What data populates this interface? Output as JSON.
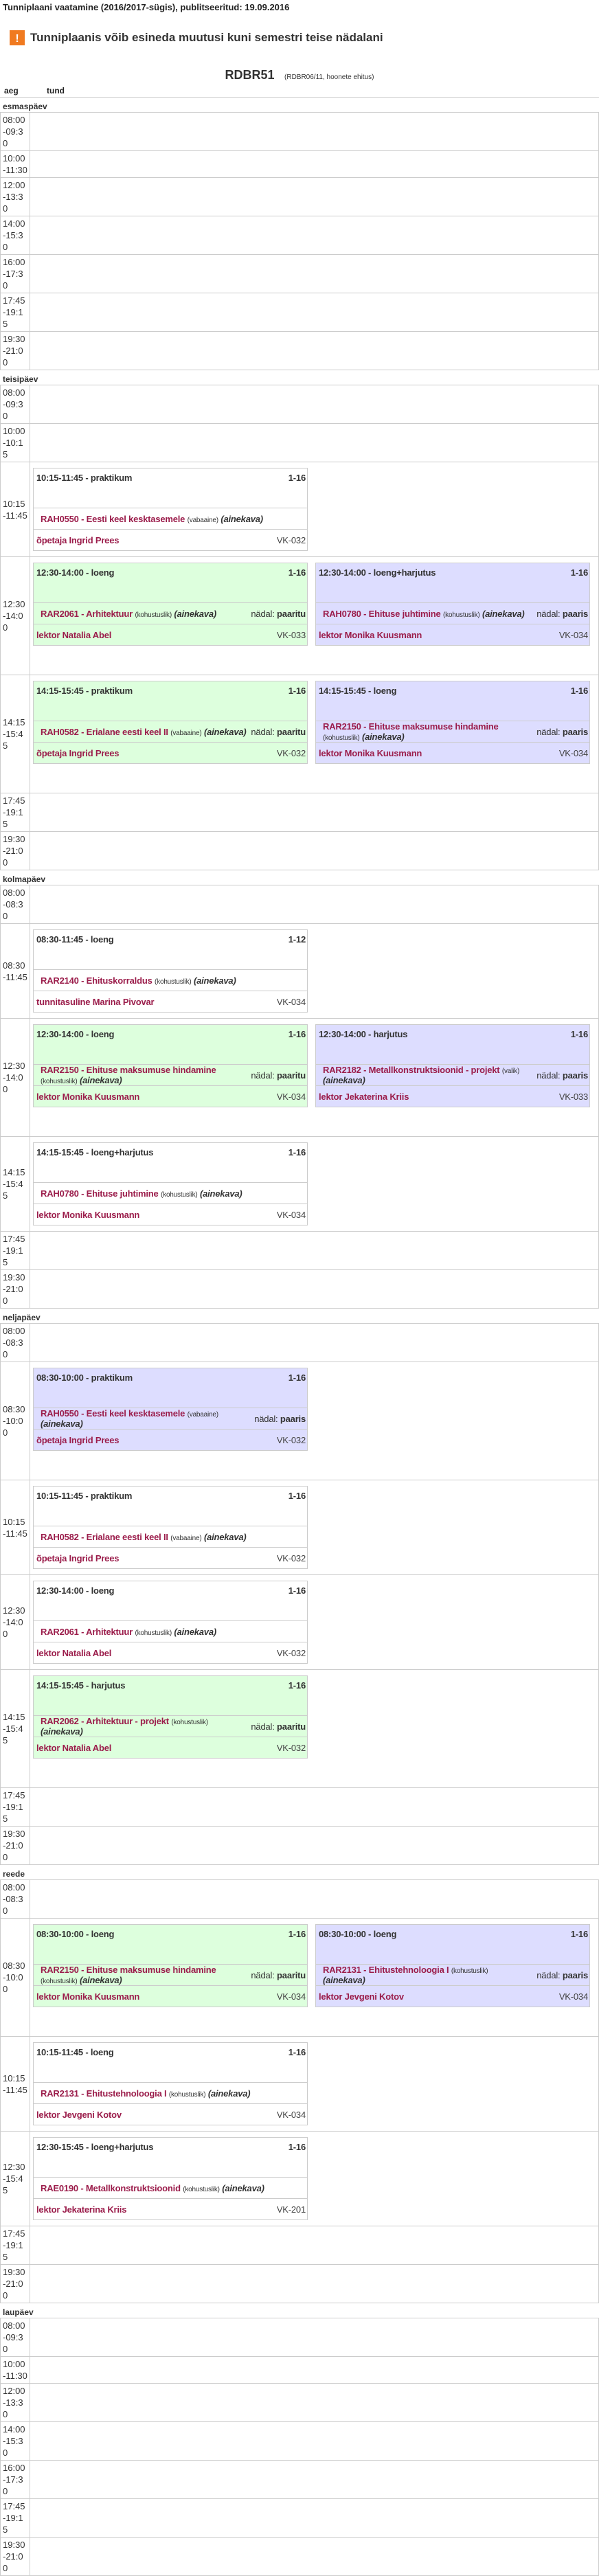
{
  "page_title": "Tunniplaani vaatamine (2016/2017-sügis), publitseeritud: 19.09.2016",
  "warning": {
    "icon": "exclamation-icon",
    "text": "Tunniplaanis võib esineda muutusi kuni semestri teise nädalani",
    "color": "#f07a20"
  },
  "group": {
    "name": "RDBR51",
    "subtitle": "(RDBR06/11, hoonete ehitus)"
  },
  "columns": {
    "time": "aeg",
    "lesson": "tund"
  },
  "colors": {
    "green": "#ddffdd",
    "purple": "#ddddff",
    "white": "#ffffff",
    "link": "#9b1d4b"
  },
  "days": [
    {
      "name": "esmaspäev",
      "slots": [
        {
          "time": "08:00-09:30",
          "cards": []
        },
        {
          "time": "10:00-11:30",
          "cards": []
        },
        {
          "time": "12:00-13:30",
          "cards": []
        },
        {
          "time": "14:00-15:30",
          "cards": []
        },
        {
          "time": "16:00-17:30",
          "cards": []
        },
        {
          "time": "17:45-19:15",
          "cards": []
        },
        {
          "time": "19:30-21:00",
          "cards": []
        }
      ]
    },
    {
      "name": "teisipäev",
      "slots": [
        {
          "time": "08:00-09:30",
          "cards": []
        },
        {
          "time": "10:00-10:15",
          "cards": []
        },
        {
          "time": "10:15-11:45",
          "cards": [
            {
              "color": "white",
              "time": "10:15-11:45",
              "type": "praktikum",
              "weeks": "1-16",
              "course": "RAH0550 - Eesti keel kesktasemele",
              "kind": "(vabaaine)",
              "ainekava": "(ainekava)",
              "teacher": "õpetaja Ingrid Prees",
              "room": "VK-032"
            }
          ]
        },
        {
          "time": "12:30-14:00",
          "cards": [
            {
              "color": "green",
              "time": "12:30-14:00",
              "type": "loeng",
              "weeks": "1-16",
              "course": "RAR2061 - Arhitektuur",
              "kind": "(kohustuslik)",
              "ainekava": "(ainekava)",
              "nadal_label": "nädal:",
              "nadal": "paaritu",
              "teacher": "lektor Natalia Abel",
              "room": "VK-033"
            },
            {
              "color": "purple",
              "time": "12:30-14:00",
              "type": "loeng+harjutus",
              "weeks": "1-16",
              "course": "RAH0780 - Ehituse juhtimine",
              "kind": "(kohustuslik)",
              "ainekava": "(ainekava)",
              "nadal_label": "nädal:",
              "nadal": "paaris",
              "teacher": "lektor Monika Kuusmann",
              "room": "VK-034"
            }
          ]
        },
        {
          "time": "14:15-15:45",
          "cards": [
            {
              "color": "green",
              "time": "14:15-15:45",
              "type": "praktikum",
              "weeks": "1-16",
              "course": "RAH0582 - Erialane eesti keel II",
              "kind": "(vabaaine)",
              "ainekava": "(ainekava)",
              "nadal_label": "nädal:",
              "nadal": "paaritu",
              "teacher": "õpetaja Ingrid Prees",
              "room": "VK-032"
            },
            {
              "color": "purple",
              "time": "14:15-15:45",
              "type": "loeng",
              "weeks": "1-16",
              "course": "RAR2150 - Ehituse maksumuse hindamine",
              "kind": "(kohustuslik)",
              "ainekava": "(ainekava)",
              "nadal_label": "nädal:",
              "nadal": "paaris",
              "teacher": "lektor Monika Kuusmann",
              "room": "VK-034"
            }
          ]
        },
        {
          "time": "17:45-19:15",
          "cards": []
        },
        {
          "time": "19:30-21:00",
          "cards": []
        }
      ]
    },
    {
      "name": "kolmapäev",
      "slots": [
        {
          "time": "08:00-08:30",
          "cards": []
        },
        {
          "time": "08:30-11:45",
          "cards": [
            {
              "color": "white",
              "time": "08:30-11:45",
              "type": "loeng",
              "weeks": "1-12",
              "course": "RAR2140 - Ehituskorraldus",
              "kind": "(kohustuslik)",
              "ainekava": "(ainekava)",
              "teacher": "tunnitasuline Marina Pivovar",
              "room": "VK-034"
            }
          ]
        },
        {
          "time": "12:30-14:00",
          "cards": [
            {
              "color": "green",
              "time": "12:30-14:00",
              "type": "loeng",
              "weeks": "1-16",
              "course": "RAR2150 - Ehituse maksumuse hindamine",
              "kind": "(kohustuslik)",
              "ainekava": "(ainekava)",
              "nadal_label": "nädal:",
              "nadal": "paaritu",
              "teacher": "lektor Monika Kuusmann",
              "room": "VK-034"
            },
            {
              "color": "purple",
              "time": "12:30-14:00",
              "type": "harjutus",
              "weeks": "1-16",
              "course": "RAR2182 - Metallkonstruktsioonid - projekt",
              "kind": "(valik)",
              "ainekava": "(ainekava)",
              "nadal_label": "nädal:",
              "nadal": "paaris",
              "teacher": "lektor Jekaterina Kriis",
              "room": "VK-033"
            }
          ]
        },
        {
          "time": "14:15-15:45",
          "cards": [
            {
              "color": "white",
              "time": "14:15-15:45",
              "type": "loeng+harjutus",
              "weeks": "1-16",
              "course": "RAH0780 - Ehituse juhtimine",
              "kind": "(kohustuslik)",
              "ainekava": "(ainekava)",
              "teacher": "lektor Monika Kuusmann",
              "room": "VK-034"
            }
          ]
        },
        {
          "time": "17:45-19:15",
          "cards": []
        },
        {
          "time": "19:30-21:00",
          "cards": []
        }
      ]
    },
    {
      "name": "neljapäev",
      "slots": [
        {
          "time": "08:00-08:30",
          "cards": []
        },
        {
          "time": "08:30-10:00",
          "cards": [
            {
              "color": "purple",
              "time": "08:30-10:00",
              "type": "praktikum",
              "weeks": "1-16",
              "course": "RAH0550 - Eesti keel kesktasemele",
              "kind": "(vabaaine)",
              "ainekava": "(ainekava)",
              "nadal_label": "nädal:",
              "nadal": "paaris",
              "teacher": "õpetaja Ingrid Prees",
              "room": "VK-032"
            }
          ]
        },
        {
          "time": "10:15-11:45",
          "cards": [
            {
              "color": "white",
              "time": "10:15-11:45",
              "type": "praktikum",
              "weeks": "1-16",
              "course": "RAH0582 - Erialane eesti keel II",
              "kind": "(vabaaine)",
              "ainekava": "(ainekava)",
              "teacher": "õpetaja Ingrid Prees",
              "room": "VK-032"
            }
          ]
        },
        {
          "time": "12:30-14:00",
          "cards": [
            {
              "color": "white",
              "time": "12:30-14:00",
              "type": "loeng",
              "weeks": "1-16",
              "course": "RAR2061 - Arhitektuur",
              "kind": "(kohustuslik)",
              "ainekava": "(ainekava)",
              "teacher": "lektor Natalia Abel",
              "room": "VK-032"
            }
          ]
        },
        {
          "time": "14:15-15:45",
          "cards": [
            {
              "color": "green",
              "time": "14:15-15:45",
              "type": "harjutus",
              "weeks": "1-16",
              "course": "RAR2062 - Arhitektuur - projekt",
              "kind": "(kohustuslik)",
              "ainekava": "(ainekava)",
              "nadal_label": "nädal:",
              "nadal": "paaritu",
              "teacher": "lektor Natalia Abel",
              "room": "VK-032"
            }
          ]
        },
        {
          "time": "17:45-19:15",
          "cards": []
        },
        {
          "time": "19:30-21:00",
          "cards": []
        }
      ]
    },
    {
      "name": "reede",
      "slots": [
        {
          "time": "08:00-08:30",
          "cards": []
        },
        {
          "time": "08:30-10:00",
          "cards": [
            {
              "color": "green",
              "time": "08:30-10:00",
              "type": "loeng",
              "weeks": "1-16",
              "course": "RAR2150 - Ehituse maksumuse hindamine",
              "kind": "(kohustuslik)",
              "ainekava": "(ainekava)",
              "nadal_label": "nädal:",
              "nadal": "paaritu",
              "teacher": "lektor Monika Kuusmann",
              "room": "VK-034"
            },
            {
              "color": "purple",
              "time": "08:30-10:00",
              "type": "loeng",
              "weeks": "1-16",
              "course": "RAR2131 - Ehitustehnoloogia I",
              "kind": "(kohustuslik)",
              "ainekava": "(ainekava)",
              "nadal_label": "nädal:",
              "nadal": "paaris",
              "teacher": "lektor Jevgeni Kotov",
              "room": "VK-034"
            }
          ]
        },
        {
          "time": "10:15-11:45",
          "cards": [
            {
              "color": "white",
              "time": "10:15-11:45",
              "type": "loeng",
              "weeks": "1-16",
              "course": "RAR2131 - Ehitustehnoloogia I",
              "kind": "(kohustuslik)",
              "ainekava": "(ainekava)",
              "teacher": "lektor Jevgeni Kotov",
              "room": "VK-034"
            }
          ]
        },
        {
          "time": "12:30-15:45",
          "cards": [
            {
              "color": "white",
              "time": "12:30-15:45",
              "type": "loeng+harjutus",
              "weeks": "1-16",
              "course": "RAE0190 - Metallkonstruktsioonid",
              "kind": "(kohustuslik)",
              "ainekava": "(ainekava)",
              "teacher": "lektor Jekaterina Kriis",
              "room": "VK-201"
            }
          ]
        },
        {
          "time": "17:45-19:15",
          "cards": []
        },
        {
          "time": "19:30-21:00",
          "cards": []
        }
      ]
    },
    {
      "name": "laupäev",
      "slots": [
        {
          "time": "08:00-09:30",
          "cards": []
        },
        {
          "time": "10:00-11:30",
          "cards": []
        },
        {
          "time": "12:00-13:30",
          "cards": []
        },
        {
          "time": "14:00-15:30",
          "cards": []
        },
        {
          "time": "16:00-17:30",
          "cards": []
        },
        {
          "time": "17:45-19:15",
          "cards": []
        },
        {
          "time": "19:30-21:00",
          "cards": []
        }
      ]
    }
  ]
}
